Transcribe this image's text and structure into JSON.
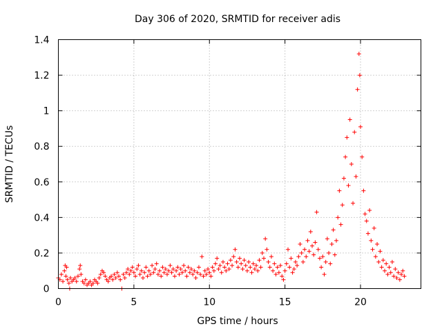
{
  "chart_data": {
    "type": "scatter",
    "title": "Day 306 of 2020, SRMTID for receiver adis",
    "xlabel": "GPS time / hours",
    "ylabel": "SRMTID / TECUs",
    "xlim": [
      0,
      24
    ],
    "ylim": [
      0,
      1.4
    ],
    "xticks": [
      0,
      5,
      10,
      15,
      20
    ],
    "xtick_labels": [
      "0",
      "5",
      "10",
      "15",
      "20"
    ],
    "yticks": [
      0,
      0.2,
      0.4,
      0.6,
      0.8,
      1,
      1.2,
      1.4
    ],
    "ytick_labels": [
      "0",
      "0.2",
      "0.4",
      "0.6",
      "0.8",
      "1",
      "1.2",
      "1.4"
    ],
    "grid": true,
    "marker": "+",
    "color": "#ff0000",
    "series": [
      {
        "name": "SRMTID",
        "points": [
          [
            0.0,
            0.06
          ],
          [
            0.1,
            0.05
          ],
          [
            0.2,
            0.08
          ],
          [
            0.3,
            0.04
          ],
          [
            0.4,
            0.1
          ],
          [
            0.45,
            0.13
          ],
          [
            0.5,
            0.07
          ],
          [
            0.55,
            0.12
          ],
          [
            0.6,
            0.05
          ],
          [
            0.7,
            0.03
          ],
          [
            0.75,
            0.0
          ],
          [
            0.8,
            0.06
          ],
          [
            0.9,
            0.04
          ],
          [
            1.0,
            0.05
          ],
          [
            1.1,
            0.06
          ],
          [
            1.2,
            0.04
          ],
          [
            1.3,
            0.07
          ],
          [
            1.4,
            0.11
          ],
          [
            1.45,
            0.13
          ],
          [
            1.5,
            0.08
          ],
          [
            1.6,
            0.04
          ],
          [
            1.7,
            0.03
          ],
          [
            1.8,
            0.05
          ],
          [
            1.9,
            0.02
          ],
          [
            2.0,
            0.03
          ],
          [
            2.1,
            0.04
          ],
          [
            2.2,
            0.02
          ],
          [
            2.3,
            0.03
          ],
          [
            2.4,
            0.05
          ],
          [
            2.5,
            0.04
          ],
          [
            2.6,
            0.03
          ],
          [
            2.7,
            0.06
          ],
          [
            2.8,
            0.08
          ],
          [
            2.9,
            0.1
          ],
          [
            3.0,
            0.09
          ],
          [
            3.1,
            0.07
          ],
          [
            3.2,
            0.05
          ],
          [
            3.3,
            0.04
          ],
          [
            3.4,
            0.06
          ],
          [
            3.5,
            0.07
          ],
          [
            3.6,
            0.05
          ],
          [
            3.7,
            0.08
          ],
          [
            3.8,
            0.06
          ],
          [
            3.9,
            0.09
          ],
          [
            4.0,
            0.07
          ],
          [
            4.1,
            0.05
          ],
          [
            4.2,
            0.0
          ],
          [
            4.3,
            0.08
          ],
          [
            4.4,
            0.06
          ],
          [
            4.5,
            0.09
          ],
          [
            4.6,
            0.11
          ],
          [
            4.7,
            0.08
          ],
          [
            4.8,
            0.1
          ],
          [
            4.9,
            0.12
          ],
          [
            5.0,
            0.09
          ],
          [
            5.1,
            0.07
          ],
          [
            5.2,
            0.11
          ],
          [
            5.3,
            0.13
          ],
          [
            5.4,
            0.08
          ],
          [
            5.5,
            0.1
          ],
          [
            5.6,
            0.06
          ],
          [
            5.7,
            0.09
          ],
          [
            5.8,
            0.12
          ],
          [
            5.9,
            0.07
          ],
          [
            6.0,
            0.1
          ],
          [
            6.1,
            0.08
          ],
          [
            6.2,
            0.13
          ],
          [
            6.3,
            0.09
          ],
          [
            6.4,
            0.11
          ],
          [
            6.5,
            0.14
          ],
          [
            6.6,
            0.08
          ],
          [
            6.7,
            0.1
          ],
          [
            6.8,
            0.07
          ],
          [
            6.9,
            0.12
          ],
          [
            7.0,
            0.09
          ],
          [
            7.1,
            0.11
          ],
          [
            7.2,
            0.08
          ],
          [
            7.3,
            0.1
          ],
          [
            7.4,
            0.13
          ],
          [
            7.5,
            0.09
          ],
          [
            7.6,
            0.11
          ],
          [
            7.7,
            0.07
          ],
          [
            7.8,
            0.1
          ],
          [
            7.9,
            0.12
          ],
          [
            8.0,
            0.08
          ],
          [
            8.1,
            0.11
          ],
          [
            8.2,
            0.09
          ],
          [
            8.3,
            0.13
          ],
          [
            8.4,
            0.1
          ],
          [
            8.5,
            0.07
          ],
          [
            8.6,
            0.12
          ],
          [
            8.7,
            0.09
          ],
          [
            8.8,
            0.11
          ],
          [
            8.9,
            0.08
          ],
          [
            9.0,
            0.1
          ],
          [
            9.1,
            0.06
          ],
          [
            9.2,
            0.09
          ],
          [
            9.3,
            0.12
          ],
          [
            9.4,
            0.08
          ],
          [
            9.5,
            0.18
          ],
          [
            9.6,
            0.07
          ],
          [
            9.7,
            0.1
          ],
          [
            9.8,
            0.08
          ],
          [
            9.9,
            0.11
          ],
          [
            10.0,
            0.09
          ],
          [
            10.1,
            0.07
          ],
          [
            10.2,
            0.12
          ],
          [
            10.3,
            0.1
          ],
          [
            10.4,
            0.14
          ],
          [
            10.5,
            0.17
          ],
          [
            10.6,
            0.11
          ],
          [
            10.7,
            0.13
          ],
          [
            10.8,
            0.09
          ],
          [
            10.9,
            0.15
          ],
          [
            11.0,
            0.12
          ],
          [
            11.1,
            0.1
          ],
          [
            11.2,
            0.14
          ],
          [
            11.3,
            0.11
          ],
          [
            11.4,
            0.16
          ],
          [
            11.5,
            0.13
          ],
          [
            11.6,
            0.18
          ],
          [
            11.7,
            0.22
          ],
          [
            11.8,
            0.15
          ],
          [
            11.9,
            0.12
          ],
          [
            12.0,
            0.17
          ],
          [
            12.1,
            0.14
          ],
          [
            12.2,
            0.11
          ],
          [
            12.3,
            0.16
          ],
          [
            12.4,
            0.13
          ],
          [
            12.5,
            0.1
          ],
          [
            12.6,
            0.15
          ],
          [
            12.7,
            0.12
          ],
          [
            12.8,
            0.09
          ],
          [
            12.9,
            0.14
          ],
          [
            13.0,
            0.11
          ],
          [
            13.1,
            0.13
          ],
          [
            13.2,
            0.1
          ],
          [
            13.3,
            0.16
          ],
          [
            13.4,
            0.12
          ],
          [
            13.5,
            0.2
          ],
          [
            13.6,
            0.17
          ],
          [
            13.7,
            0.28
          ],
          [
            13.8,
            0.22
          ],
          [
            13.9,
            0.15
          ],
          [
            14.0,
            0.12
          ],
          [
            14.1,
            0.18
          ],
          [
            14.2,
            0.1
          ],
          [
            14.3,
            0.14
          ],
          [
            14.4,
            0.08
          ],
          [
            14.5,
            0.12
          ],
          [
            14.6,
            0.09
          ],
          [
            14.7,
            0.13
          ],
          [
            14.8,
            0.07
          ],
          [
            14.9,
            0.05
          ],
          [
            15.0,
            0.1
          ],
          [
            15.1,
            0.14
          ],
          [
            15.2,
            0.22
          ],
          [
            15.3,
            0.12
          ],
          [
            15.4,
            0.17
          ],
          [
            15.5,
            0.09
          ],
          [
            15.6,
            0.11
          ],
          [
            15.7,
            0.15
          ],
          [
            15.8,
            0.13
          ],
          [
            15.9,
            0.18
          ],
          [
            16.0,
            0.25
          ],
          [
            16.1,
            0.2
          ],
          [
            16.2,
            0.15
          ],
          [
            16.3,
            0.22
          ],
          [
            16.4,
            0.18
          ],
          [
            16.5,
            0.27
          ],
          [
            16.6,
            0.21
          ],
          [
            16.7,
            0.32
          ],
          [
            16.8,
            0.24
          ],
          [
            16.9,
            0.19
          ],
          [
            17.0,
            0.26
          ],
          [
            17.1,
            0.43
          ],
          [
            17.2,
            0.22
          ],
          [
            17.3,
            0.17
          ],
          [
            17.4,
            0.12
          ],
          [
            17.5,
            0.18
          ],
          [
            17.6,
            0.08
          ],
          [
            17.7,
            0.15
          ],
          [
            17.8,
            0.28
          ],
          [
            17.9,
            0.2
          ],
          [
            18.0,
            0.14
          ],
          [
            18.1,
            0.25
          ],
          [
            18.2,
            0.33
          ],
          [
            18.3,
            0.19
          ],
          [
            18.4,
            0.27
          ],
          [
            18.5,
            0.4
          ],
          [
            18.6,
            0.55
          ],
          [
            18.7,
            0.36
          ],
          [
            18.8,
            0.47
          ],
          [
            18.9,
            0.62
          ],
          [
            19.0,
            0.74
          ],
          [
            19.1,
            0.85
          ],
          [
            19.2,
            0.58
          ],
          [
            19.3,
            0.95
          ],
          [
            19.4,
            0.7
          ],
          [
            19.5,
            0.48
          ],
          [
            19.6,
            0.88
          ],
          [
            19.7,
            0.63
          ],
          [
            19.8,
            1.12
          ],
          [
            19.9,
            1.32
          ],
          [
            19.95,
            1.2
          ],
          [
            20.0,
            0.91
          ],
          [
            20.1,
            0.74
          ],
          [
            20.2,
            0.55
          ],
          [
            20.3,
            0.42
          ],
          [
            20.4,
            0.38
          ],
          [
            20.5,
            0.31
          ],
          [
            20.6,
            0.44
          ],
          [
            20.7,
            0.27
          ],
          [
            20.8,
            0.22
          ],
          [
            20.9,
            0.34
          ],
          [
            21.0,
            0.18
          ],
          [
            21.1,
            0.25
          ],
          [
            21.2,
            0.15
          ],
          [
            21.3,
            0.21
          ],
          [
            21.4,
            0.12
          ],
          [
            21.5,
            0.16
          ],
          [
            21.6,
            0.1
          ],
          [
            21.7,
            0.14
          ],
          [
            21.8,
            0.08
          ],
          [
            21.9,
            0.12
          ],
          [
            22.0,
            0.09
          ],
          [
            22.1,
            0.15
          ],
          [
            22.2,
            0.07
          ],
          [
            22.3,
            0.11
          ],
          [
            22.4,
            0.06
          ],
          [
            22.5,
            0.09
          ],
          [
            22.6,
            0.05
          ],
          [
            22.7,
            0.08
          ],
          [
            22.8,
            0.1
          ],
          [
            22.9,
            0.07
          ]
        ]
      }
    ]
  }
}
